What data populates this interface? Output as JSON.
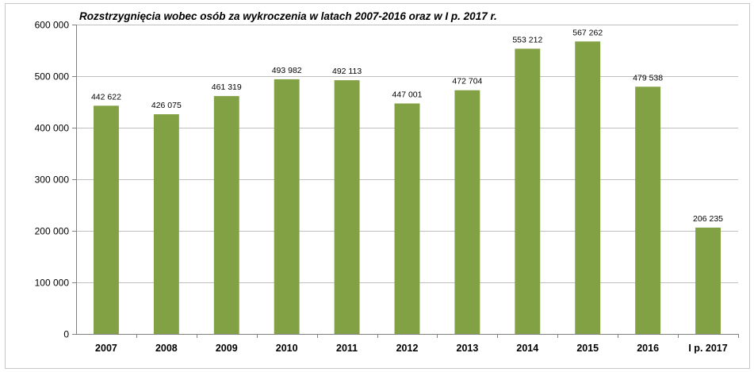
{
  "chart_data": {
    "type": "bar",
    "title": "Rozstrzygnięcia wobec osób za wykroczenia w latach 2007-2016 oraz w I p. 2017 r.",
    "categories": [
      "2007",
      "2008",
      "2009",
      "2010",
      "2011",
      "2012",
      "2013",
      "2014",
      "2015",
      "2016",
      "I p. 2017"
    ],
    "values": [
      442622,
      426075,
      461319,
      493982,
      492113,
      447001,
      472704,
      553212,
      567262,
      479538,
      206235
    ],
    "data_labels": [
      "442 622",
      "426 075",
      "461 319",
      "493 982",
      "492 113",
      "447 001",
      "472 704",
      "553 212",
      "567 262",
      "479 538",
      "206 235"
    ],
    "yticks": [
      0,
      100000,
      200000,
      300000,
      400000,
      500000,
      600000
    ],
    "ytick_labels": [
      "0",
      "100 000",
      "200 000",
      "300 000",
      "400 000",
      "500 000",
      "600 000"
    ],
    "ylim": [
      0,
      600000
    ],
    "xlabel": "",
    "ylabel": "",
    "grid": true,
    "legend": "none",
    "bar_color": "#82A044",
    "grid_color": "#BFBFBF",
    "axis_color": "#808080"
  }
}
